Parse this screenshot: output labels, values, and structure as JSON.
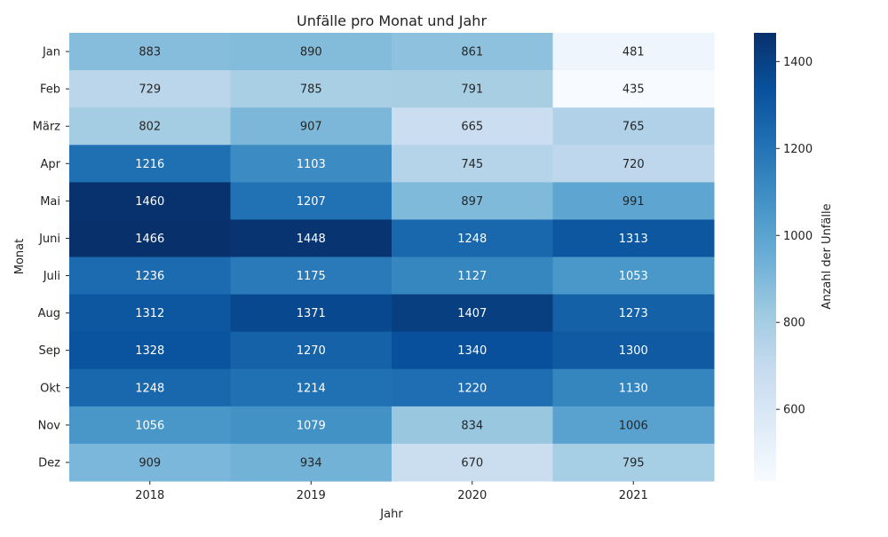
{
  "chart_data": {
    "type": "heatmap",
    "title": "Unfälle pro Monat und Jahr",
    "xlabel": "Jahr",
    "ylabel": "Monat",
    "colorbar_label": "Anzahl der Unfälle",
    "colormap": "Blues",
    "x_categories": [
      "2018",
      "2019",
      "2020",
      "2021"
    ],
    "y_categories": [
      "Jan",
      "Feb",
      "März",
      "Apr",
      "Mai",
      "Juni",
      "Juli",
      "Aug",
      "Sep",
      "Okt",
      "Nov",
      "Dez"
    ],
    "values": [
      [
        883,
        890,
        861,
        481
      ],
      [
        729,
        785,
        791,
        435
      ],
      [
        802,
        907,
        665,
        765
      ],
      [
        1216,
        1103,
        745,
        720
      ],
      [
        1460,
        1207,
        897,
        991
      ],
      [
        1466,
        1448,
        1248,
        1313
      ],
      [
        1236,
        1175,
        1127,
        1053
      ],
      [
        1312,
        1371,
        1407,
        1273
      ],
      [
        1328,
        1270,
        1340,
        1300
      ],
      [
        1248,
        1214,
        1220,
        1130
      ],
      [
        1056,
        1079,
        834,
        1006
      ],
      [
        909,
        934,
        670,
        795
      ]
    ],
    "color_range": [
      435,
      1466
    ],
    "colorbar_ticks": [
      600,
      800,
      1000,
      1200,
      1400
    ]
  }
}
